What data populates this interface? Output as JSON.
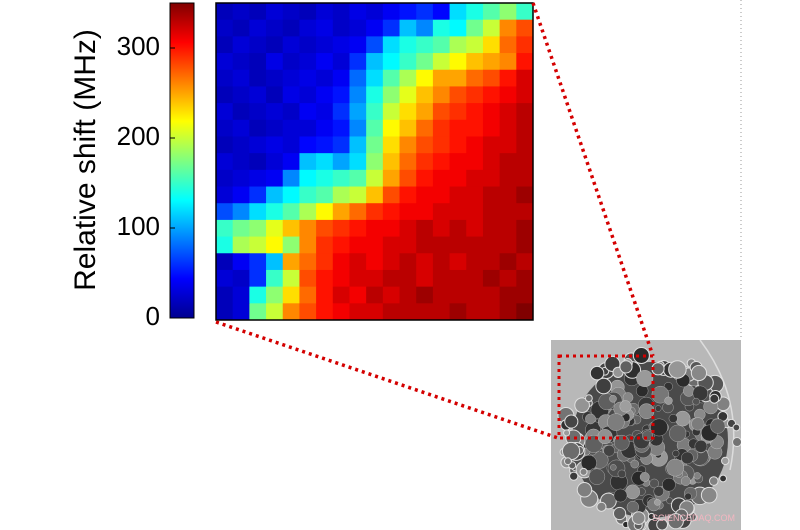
{
  "chart_data": {
    "type": "heatmap",
    "ylabel": "Relative shift (MHz)",
    "ylim": [
      0,
      350
    ],
    "yticks": [
      0,
      100,
      200,
      300
    ],
    "colormap": "jet",
    "values": [
      [
        20,
        25,
        20,
        30,
        25,
        20,
        30,
        25,
        35,
        30,
        40,
        50,
        60,
        45,
        120,
        140,
        160,
        180,
        150
      ],
      [
        25,
        20,
        30,
        25,
        20,
        30,
        35,
        25,
        30,
        40,
        60,
        110,
        90,
        140,
        130,
        170,
        200,
        260,
        280
      ],
      [
        20,
        30,
        25,
        20,
        30,
        25,
        30,
        35,
        40,
        70,
        120,
        140,
        150,
        160,
        190,
        200,
        230,
        270,
        290
      ],
      [
        30,
        25,
        20,
        35,
        25,
        30,
        40,
        30,
        60,
        110,
        130,
        150,
        170,
        200,
        220,
        240,
        250,
        260,
        300
      ],
      [
        25,
        30,
        20,
        25,
        30,
        35,
        30,
        40,
        80,
        120,
        160,
        190,
        220,
        250,
        250,
        270,
        280,
        300,
        320
      ],
      [
        20,
        25,
        30,
        20,
        35,
        30,
        40,
        50,
        90,
        140,
        180,
        210,
        240,
        260,
        280,
        290,
        300,
        310,
        320
      ],
      [
        30,
        20,
        25,
        30,
        25,
        40,
        35,
        60,
        100,
        150,
        200,
        230,
        250,
        280,
        290,
        300,
        310,
        320,
        330
      ],
      [
        25,
        30,
        20,
        25,
        30,
        30,
        40,
        50,
        90,
        160,
        220,
        240,
        270,
        290,
        300,
        300,
        310,
        320,
        330
      ],
      [
        20,
        25,
        30,
        35,
        30,
        45,
        50,
        60,
        110,
        170,
        230,
        260,
        280,
        290,
        300,
        310,
        320,
        320,
        330
      ],
      [
        30,
        25,
        20,
        30,
        40,
        110,
        120,
        100,
        120,
        180,
        240,
        270,
        290,
        300,
        310,
        310,
        320,
        330,
        330
      ],
      [
        25,
        30,
        35,
        40,
        90,
        130,
        140,
        150,
        160,
        200,
        250,
        280,
        300,
        310,
        310,
        320,
        320,
        330,
        330
      ],
      [
        30,
        40,
        60,
        110,
        130,
        150,
        160,
        190,
        200,
        240,
        280,
        300,
        310,
        310,
        320,
        320,
        330,
        330,
        340
      ],
      [
        70,
        90,
        120,
        140,
        160,
        190,
        220,
        250,
        270,
        290,
        300,
        310,
        310,
        320,
        320,
        320,
        330,
        330,
        330
      ],
      [
        150,
        170,
        180,
        210,
        240,
        260,
        280,
        290,
        300,
        310,
        310,
        320,
        330,
        320,
        330,
        320,
        330,
        330,
        340
      ],
      [
        140,
        190,
        200,
        220,
        180,
        260,
        290,
        300,
        310,
        310,
        320,
        320,
        330,
        330,
        330,
        330,
        330,
        330,
        340
      ],
      [
        20,
        40,
        60,
        110,
        250,
        270,
        290,
        310,
        320,
        310,
        320,
        330,
        320,
        330,
        320,
        330,
        330,
        340,
        330
      ],
      [
        30,
        25,
        60,
        150,
        200,
        280,
        300,
        310,
        320,
        320,
        330,
        330,
        320,
        330,
        330,
        330,
        340,
        330,
        340
      ],
      [
        20,
        30,
        140,
        180,
        230,
        270,
        300,
        320,
        310,
        330,
        320,
        330,
        340,
        330,
        330,
        330,
        330,
        340,
        340
      ],
      [
        20,
        30,
        170,
        200,
        260,
        280,
        300,
        310,
        320,
        320,
        330,
        330,
        330,
        330,
        340,
        330,
        330,
        340,
        350
      ]
    ],
    "watermark": "SCIENCEDAQ.COM"
  }
}
